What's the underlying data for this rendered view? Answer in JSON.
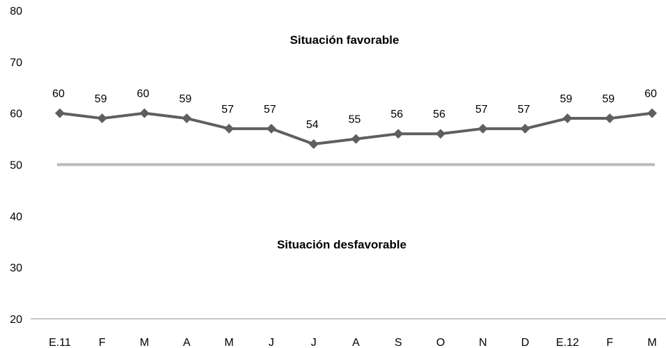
{
  "chart_data": {
    "type": "line",
    "categories": [
      "E.11",
      "F",
      "M",
      "A",
      "M",
      "J",
      "J",
      "A",
      "S",
      "O",
      "N",
      "D",
      "E.12",
      "F",
      "M"
    ],
    "series": [
      {
        "values": [
          60,
          59,
          60,
          59,
          57,
          57,
          54,
          55,
          56,
          56,
          57,
          57,
          59,
          59,
          60
        ]
      }
    ],
    "threshold": 50,
    "ylim": [
      20,
      80
    ],
    "yticks": [
      20,
      30,
      40,
      50,
      60,
      70,
      80
    ],
    "grid": false,
    "annotations": {
      "above": "Situación favorable",
      "below": "Situación desfavorable"
    },
    "colors": {
      "series": "#5f5f5f",
      "threshold": "#b9b9b9",
      "axis": "#8c8c8c"
    }
  }
}
